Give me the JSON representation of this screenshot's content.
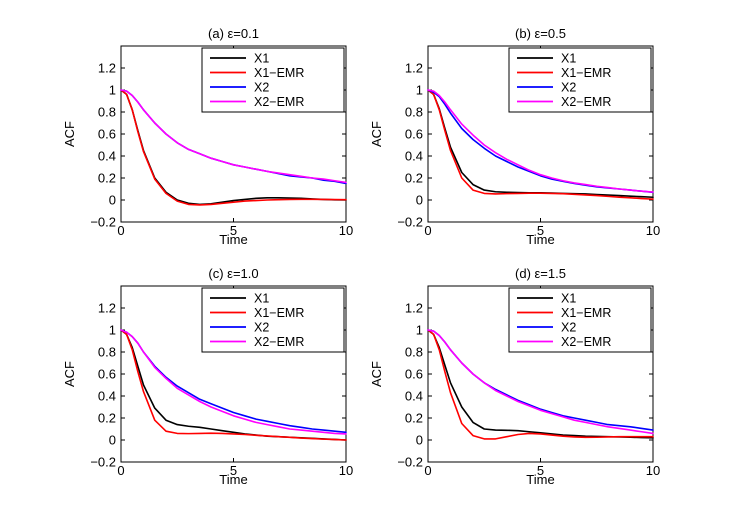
{
  "chart_data": [
    {
      "type": "line",
      "title": "(a) ε=0.1",
      "xlabel": "Time",
      "ylabel": "ACF",
      "xlim": [
        0,
        10
      ],
      "ylim": [
        -0.2,
        1.4
      ],
      "xticks": [
        "0",
        "5",
        "10"
      ],
      "yticks": [
        "−0.2",
        "0",
        "0.2",
        "0.4",
        "0.6",
        "0.8",
        "1",
        "1.2"
      ],
      "legend_position": "top-right",
      "series": [
        {
          "name": "X1",
          "color": "#000000",
          "x": [
            0,
            0.25,
            0.5,
            0.75,
            1,
            1.5,
            2,
            2.5,
            3,
            3.5,
            4,
            4.5,
            5,
            5.5,
            6,
            6.5,
            7,
            7.5,
            8,
            8.5,
            9,
            9.5,
            10
          ],
          "y": [
            1,
            0.96,
            0.82,
            0.63,
            0.45,
            0.2,
            0.07,
            0.0,
            -0.03,
            -0.04,
            -0.035,
            -0.02,
            -0.005,
            0.005,
            0.015,
            0.02,
            0.02,
            0.018,
            0.015,
            0.01,
            0.005,
            0.002,
            0.0
          ]
        },
        {
          "name": "X1−EMR",
          "color": "#ff0000",
          "x": [
            0,
            0.25,
            0.5,
            0.75,
            1,
            1.5,
            2,
            2.5,
            3,
            3.5,
            4,
            4.5,
            5,
            5.5,
            6,
            6.5,
            7,
            7.5,
            8,
            8.5,
            9,
            9.5,
            10
          ],
          "y": [
            1,
            0.96,
            0.82,
            0.62,
            0.44,
            0.19,
            0.06,
            -0.01,
            -0.04,
            -0.045,
            -0.04,
            -0.03,
            -0.02,
            -0.01,
            -0.005,
            0.0,
            0.003,
            0.005,
            0.006,
            0.006,
            0.005,
            0.004,
            0.003
          ]
        },
        {
          "name": "X2",
          "color": "#0000ff",
          "x": [
            0,
            0.25,
            0.5,
            0.75,
            1,
            1.5,
            2,
            2.5,
            3,
            3.5,
            4,
            4.5,
            5,
            5.5,
            6,
            6.5,
            7,
            7.5,
            8,
            8.5,
            9,
            9.5,
            10
          ],
          "y": [
            1,
            0.99,
            0.95,
            0.89,
            0.82,
            0.7,
            0.6,
            0.52,
            0.46,
            0.42,
            0.38,
            0.35,
            0.32,
            0.3,
            0.28,
            0.26,
            0.24,
            0.22,
            0.21,
            0.2,
            0.18,
            0.17,
            0.15
          ]
        },
        {
          "name": "X2−EMR",
          "color": "#ff00ff",
          "x": [
            0,
            0.25,
            0.5,
            0.75,
            1,
            1.5,
            2,
            2.5,
            3,
            3.5,
            4,
            4.5,
            5,
            5.5,
            6,
            6.5,
            7,
            7.5,
            8,
            8.5,
            9,
            9.5,
            10
          ],
          "y": [
            1,
            0.99,
            0.95,
            0.89,
            0.82,
            0.7,
            0.6,
            0.52,
            0.46,
            0.42,
            0.38,
            0.35,
            0.32,
            0.3,
            0.28,
            0.26,
            0.245,
            0.23,
            0.215,
            0.2,
            0.19,
            0.175,
            0.16
          ]
        }
      ]
    },
    {
      "type": "line",
      "title": "(b) ε=0.5",
      "xlabel": "Time",
      "ylabel": "ACF",
      "xlim": [
        0,
        10
      ],
      "ylim": [
        -0.2,
        1.4
      ],
      "xticks": [
        "0",
        "5",
        "10"
      ],
      "yticks": [
        "−0.2",
        "0",
        "0.2",
        "0.4",
        "0.6",
        "0.8",
        "1",
        "1.2"
      ],
      "legend_position": "top-right",
      "series": [
        {
          "name": "X1",
          "color": "#000000",
          "x": [
            0,
            0.25,
            0.5,
            0.75,
            1,
            1.5,
            2,
            2.5,
            3,
            3.5,
            4,
            4.5,
            5,
            5.5,
            6,
            6.5,
            7,
            7.5,
            8,
            8.5,
            9,
            9.5,
            10
          ],
          "y": [
            1,
            0.96,
            0.83,
            0.65,
            0.48,
            0.25,
            0.14,
            0.09,
            0.075,
            0.07,
            0.068,
            0.066,
            0.065,
            0.063,
            0.06,
            0.058,
            0.055,
            0.05,
            0.045,
            0.04,
            0.035,
            0.03,
            0.025
          ]
        },
        {
          "name": "X1−EMR",
          "color": "#ff0000",
          "x": [
            0,
            0.25,
            0.5,
            0.75,
            1,
            1.5,
            2,
            2.5,
            3,
            3.5,
            4,
            4.5,
            5,
            5.5,
            6,
            6.5,
            7,
            7.5,
            8,
            8.5,
            9,
            9.5,
            10
          ],
          "y": [
            1,
            0.96,
            0.82,
            0.63,
            0.45,
            0.2,
            0.09,
            0.06,
            0.055,
            0.058,
            0.06,
            0.062,
            0.062,
            0.06,
            0.057,
            0.052,
            0.046,
            0.04,
            0.033,
            0.026,
            0.02,
            0.013,
            0.008
          ]
        },
        {
          "name": "X2",
          "color": "#0000ff",
          "x": [
            0,
            0.25,
            0.5,
            0.75,
            1,
            1.5,
            2,
            2.5,
            3,
            3.5,
            4,
            4.5,
            5,
            5.5,
            6,
            6.5,
            7,
            7.5,
            8,
            8.5,
            9,
            9.5,
            10
          ],
          "y": [
            1,
            0.98,
            0.94,
            0.87,
            0.79,
            0.65,
            0.55,
            0.47,
            0.4,
            0.35,
            0.3,
            0.26,
            0.22,
            0.19,
            0.17,
            0.15,
            0.135,
            0.12,
            0.11,
            0.1,
            0.09,
            0.08,
            0.07
          ]
        },
        {
          "name": "X2−EMR",
          "color": "#ff00ff",
          "x": [
            0,
            0.25,
            0.5,
            0.75,
            1,
            1.5,
            2,
            2.5,
            3,
            3.5,
            4,
            4.5,
            5,
            5.5,
            6,
            6.5,
            7,
            7.5,
            8,
            8.5,
            9,
            9.5,
            10
          ],
          "y": [
            1,
            0.99,
            0.95,
            0.89,
            0.82,
            0.69,
            0.59,
            0.5,
            0.43,
            0.37,
            0.32,
            0.27,
            0.23,
            0.2,
            0.175,
            0.155,
            0.14,
            0.125,
            0.113,
            0.1,
            0.09,
            0.08,
            0.072
          ]
        }
      ]
    },
    {
      "type": "line",
      "title": "(c) ε=1.0",
      "xlabel": "Time",
      "ylabel": "ACF",
      "xlim": [
        0,
        10
      ],
      "ylim": [
        -0.2,
        1.4
      ],
      "xticks": [
        "0",
        "5",
        "10"
      ],
      "yticks": [
        "−0.2",
        "0",
        "0.2",
        "0.4",
        "0.6",
        "0.8",
        "1",
        "1.2"
      ],
      "legend_position": "top-right",
      "series": [
        {
          "name": "X1",
          "color": "#000000",
          "x": [
            0,
            0.25,
            0.5,
            0.75,
            1,
            1.5,
            2,
            2.5,
            3,
            3.5,
            4,
            4.5,
            5,
            5.5,
            6,
            6.5,
            7,
            7.5,
            8,
            8.5,
            9,
            9.5,
            10
          ],
          "y": [
            1,
            0.96,
            0.84,
            0.67,
            0.5,
            0.29,
            0.18,
            0.14,
            0.125,
            0.115,
            0.1,
            0.085,
            0.07,
            0.055,
            0.045,
            0.035,
            0.03,
            0.025,
            0.02,
            0.015,
            0.01,
            0.005,
            0.0
          ]
        },
        {
          "name": "X1−EMR",
          "color": "#ff0000",
          "x": [
            0,
            0.25,
            0.5,
            0.75,
            1,
            1.5,
            2,
            2.5,
            3,
            3.5,
            4,
            4.5,
            5,
            5.5,
            6,
            6.5,
            7,
            7.5,
            8,
            8.5,
            9,
            9.5,
            10
          ],
          "y": [
            1,
            0.96,
            0.82,
            0.62,
            0.44,
            0.18,
            0.08,
            0.06,
            0.058,
            0.06,
            0.062,
            0.06,
            0.055,
            0.05,
            0.043,
            0.037,
            0.03,
            0.024,
            0.018,
            0.013,
            0.008,
            0.004,
            0.0
          ]
        },
        {
          "name": "X2",
          "color": "#0000ff",
          "x": [
            0,
            0.25,
            0.5,
            0.75,
            1,
            1.5,
            2,
            2.5,
            3,
            3.5,
            4,
            4.5,
            5,
            5.5,
            6,
            6.5,
            7,
            7.5,
            8,
            8.5,
            9,
            9.5,
            10
          ],
          "y": [
            1,
            0.98,
            0.94,
            0.88,
            0.8,
            0.67,
            0.57,
            0.49,
            0.43,
            0.37,
            0.33,
            0.29,
            0.25,
            0.22,
            0.19,
            0.17,
            0.15,
            0.13,
            0.115,
            0.1,
            0.09,
            0.08,
            0.07
          ]
        },
        {
          "name": "X2−EMR",
          "color": "#ff00ff",
          "x": [
            0,
            0.25,
            0.5,
            0.75,
            1,
            1.5,
            2,
            2.5,
            3,
            3.5,
            4,
            4.5,
            5,
            5.5,
            6,
            6.5,
            7,
            7.5,
            8,
            8.5,
            9,
            9.5,
            10
          ],
          "y": [
            1,
            0.98,
            0.94,
            0.88,
            0.8,
            0.66,
            0.56,
            0.47,
            0.41,
            0.35,
            0.3,
            0.26,
            0.22,
            0.19,
            0.16,
            0.14,
            0.12,
            0.1,
            0.09,
            0.08,
            0.07,
            0.06,
            0.055
          ]
        }
      ]
    },
    {
      "type": "line",
      "title": "(d) ε=1.5",
      "xlabel": "Time",
      "ylabel": "ACF",
      "xlim": [
        0,
        10
      ],
      "ylim": [
        -0.2,
        1.4
      ],
      "xticks": [
        "0",
        "5",
        "10"
      ],
      "yticks": [
        "−0.2",
        "0",
        "0.2",
        "0.4",
        "0.6",
        "0.8",
        "1",
        "1.2"
      ],
      "legend_position": "top-right",
      "series": [
        {
          "name": "X1",
          "color": "#000000",
          "x": [
            0,
            0.25,
            0.5,
            0.75,
            1,
            1.5,
            2,
            2.5,
            3,
            3.5,
            4,
            4.5,
            5,
            5.5,
            6,
            6.5,
            7,
            7.5,
            8,
            8.5,
            9,
            9.5,
            10
          ],
          "y": [
            1,
            0.96,
            0.84,
            0.68,
            0.52,
            0.3,
            0.16,
            0.1,
            0.09,
            0.088,
            0.085,
            0.075,
            0.065,
            0.055,
            0.045,
            0.04,
            0.035,
            0.033,
            0.03,
            0.028,
            0.025,
            0.022,
            0.02
          ]
        },
        {
          "name": "X1−EMR",
          "color": "#ff0000",
          "x": [
            0,
            0.25,
            0.5,
            0.75,
            1,
            1.5,
            2,
            2.5,
            3,
            3.5,
            4,
            4.5,
            5,
            5.5,
            6,
            6.5,
            7,
            7.5,
            8,
            8.5,
            9,
            9.5,
            10
          ],
          "y": [
            1,
            0.96,
            0.82,
            0.62,
            0.43,
            0.15,
            0.04,
            0.01,
            0.01,
            0.03,
            0.05,
            0.06,
            0.055,
            0.045,
            0.035,
            0.028,
            0.024,
            0.025,
            0.028,
            0.03,
            0.03,
            0.03,
            0.03
          ]
        },
        {
          "name": "X2",
          "color": "#0000ff",
          "x": [
            0,
            0.25,
            0.5,
            0.75,
            1,
            1.5,
            2,
            2.5,
            3,
            3.5,
            4,
            4.5,
            5,
            5.5,
            6,
            6.5,
            7,
            7.5,
            8,
            8.5,
            9,
            9.5,
            10
          ],
          "y": [
            1,
            0.99,
            0.95,
            0.89,
            0.82,
            0.7,
            0.6,
            0.52,
            0.46,
            0.41,
            0.36,
            0.32,
            0.28,
            0.25,
            0.22,
            0.2,
            0.18,
            0.16,
            0.14,
            0.13,
            0.12,
            0.105,
            0.09
          ]
        },
        {
          "name": "X2−EMR",
          "color": "#ff00ff",
          "x": [
            0,
            0.25,
            0.5,
            0.75,
            1,
            1.5,
            2,
            2.5,
            3,
            3.5,
            4,
            4.5,
            5,
            5.5,
            6,
            6.5,
            7,
            7.5,
            8,
            8.5,
            9,
            9.5,
            10
          ],
          "y": [
            1,
            0.99,
            0.95,
            0.89,
            0.82,
            0.7,
            0.6,
            0.52,
            0.45,
            0.4,
            0.35,
            0.31,
            0.27,
            0.24,
            0.21,
            0.18,
            0.16,
            0.14,
            0.12,
            0.105,
            0.09,
            0.075,
            0.06
          ]
        }
      ]
    }
  ]
}
